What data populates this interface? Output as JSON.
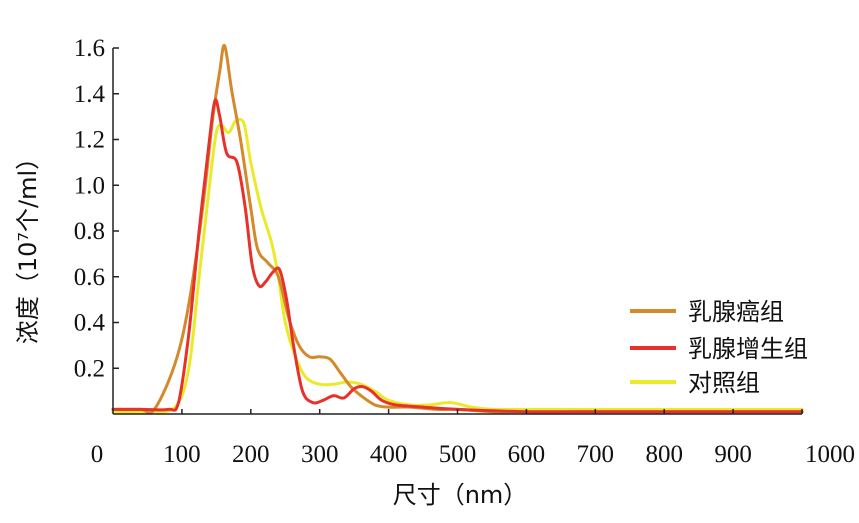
{
  "chart_data": {
    "type": "line",
    "xlabel": "尺寸（nm）",
    "ylabel": "浓度（10⁷个/ml）",
    "xlim": [
      0,
      1000
    ],
    "ylim": [
      0,
      1.6
    ],
    "xticks": [
      "0",
      "100",
      "200",
      "300",
      "400",
      "500",
      "600",
      "700",
      "800",
      "900",
      "1000"
    ],
    "yticks": [
      "0.2",
      "0.4",
      "0.6",
      "0.8",
      "1.0",
      "1.2",
      "1.4",
      "1.6"
    ],
    "grid": false,
    "legend_position": "right",
    "series": [
      {
        "name": "乳腺癌组",
        "color": "#d4892a",
        "x": [
          0,
          40,
          60,
          90,
          110,
          130,
          145,
          155,
          162,
          172,
          185,
          200,
          210,
          225,
          240,
          255,
          270,
          285,
          300,
          315,
          330,
          345,
          360,
          380,
          400,
          430,
          470,
          500,
          550,
          600,
          700,
          800,
          900,
          1000
        ],
        "y": [
          0.02,
          0.02,
          0.02,
          0.22,
          0.48,
          0.9,
          1.3,
          1.5,
          1.61,
          1.42,
          1.2,
          0.9,
          0.72,
          0.66,
          0.6,
          0.42,
          0.3,
          0.25,
          0.25,
          0.24,
          0.18,
          0.12,
          0.08,
          0.04,
          0.03,
          0.03,
          0.02,
          0.02,
          0.01,
          0.01,
          0.01,
          0.01,
          0.01,
          0.01
        ]
      },
      {
        "name": "乳腺增生组",
        "color": "#e8312a",
        "x": [
          0,
          40,
          80,
          95,
          110,
          125,
          140,
          148,
          155,
          165,
          180,
          192,
          202,
          212,
          222,
          232,
          242,
          252,
          262,
          275,
          290,
          305,
          320,
          335,
          350,
          362,
          375,
          390,
          410,
          450,
          500,
          600,
          700,
          800,
          900,
          1000
        ],
        "y": [
          0.02,
          0.02,
          0.02,
          0.05,
          0.35,
          0.8,
          1.2,
          1.37,
          1.3,
          1.14,
          1.1,
          0.9,
          0.65,
          0.56,
          0.58,
          0.62,
          0.63,
          0.5,
          0.3,
          0.1,
          0.05,
          0.06,
          0.08,
          0.07,
          0.11,
          0.12,
          0.1,
          0.06,
          0.04,
          0.03,
          0.02,
          0.01,
          0.01,
          0.01,
          0.01,
          0.01
        ]
      },
      {
        "name": "对照组",
        "color": "#eaea2a",
        "x": [
          0,
          50,
          90,
          110,
          125,
          140,
          150,
          158,
          168,
          178,
          190,
          200,
          215,
          230,
          240,
          250,
          265,
          280,
          300,
          320,
          340,
          360,
          380,
          400,
          430,
          460,
          490,
          520,
          550,
          600,
          700,
          800,
          900,
          1000
        ],
        "y": [
          0.01,
          0.01,
          0.03,
          0.2,
          0.6,
          1.0,
          1.23,
          1.26,
          1.23,
          1.28,
          1.27,
          1.1,
          0.9,
          0.75,
          0.6,
          0.4,
          0.25,
          0.16,
          0.13,
          0.13,
          0.14,
          0.13,
          0.1,
          0.06,
          0.04,
          0.04,
          0.05,
          0.03,
          0.02,
          0.02,
          0.02,
          0.02,
          0.02,
          0.02
        ]
      }
    ]
  }
}
